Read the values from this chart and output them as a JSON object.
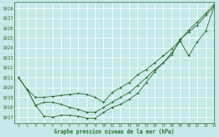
{
  "title": "Graphe pression niveau de la mer (hPa)",
  "bg_color": "#c5e8e8",
  "grid_color": "#ffffff",
  "line_color": "#2d6e2d",
  "xlim": [
    -0.5,
    23
  ],
  "ylim": [
    1016.4,
    1028.6
  ],
  "yticks": [
    1017,
    1018,
    1019,
    1020,
    1021,
    1022,
    1023,
    1024,
    1025,
    1026,
    1027,
    1028
  ],
  "xticks": [
    0,
    1,
    2,
    3,
    4,
    5,
    6,
    7,
    8,
    9,
    10,
    11,
    12,
    13,
    14,
    15,
    16,
    17,
    18,
    19,
    20,
    21,
    22,
    23
  ],
  "series": [
    {
      "x": [
        0,
        1,
        2,
        3,
        4,
        5,
        6,
        7,
        8,
        9,
        10,
        11,
        12,
        13,
        14,
        15,
        16,
        17,
        18,
        19,
        20,
        21,
        22,
        23
      ],
      "y": [
        1021.0,
        1019.8,
        1019.0,
        1019.0,
        1019.1,
        1019.2,
        1019.3,
        1019.4,
        1019.3,
        1019.0,
        1018.5,
        1019.5,
        1020.0,
        1020.5,
        1021.3,
        1021.8,
        1022.5,
        1023.2,
        1023.9,
        1024.8,
        1025.8,
        1026.6,
        1027.5,
        1028.4
      ]
    },
    {
      "x": [
        0,
        1,
        2,
        3,
        4,
        5,
        6,
        7,
        8,
        9,
        10,
        11,
        12,
        13,
        14,
        15,
        16,
        17,
        18,
        19,
        20,
        21,
        22,
        23
      ],
      "y": [
        1021.0,
        1019.8,
        1018.2,
        1018.5,
        1018.5,
        1018.3,
        1018.0,
        1017.8,
        1017.5,
        1017.5,
        1018.0,
        1018.5,
        1019.0,
        1019.5,
        1020.2,
        1021.0,
        1021.8,
        1022.5,
        1023.3,
        1024.9,
        1025.6,
        1026.3,
        1027.3,
        1028.2
      ]
    },
    {
      "x": [
        0,
        1,
        2,
        3,
        4,
        5,
        6,
        7,
        8,
        9,
        10,
        11,
        12,
        13,
        14,
        15,
        16,
        17,
        18,
        19,
        20,
        21,
        22,
        23
      ],
      "y": [
        1021.0,
        1019.8,
        1018.2,
        1017.1,
        1017.0,
        1017.2,
        1017.2,
        1017.1,
        1016.9,
        1016.9,
        1017.5,
        1018.0,
        1018.3,
        1018.8,
        1019.4,
        1020.5,
        1021.6,
        1022.5,
        1023.5,
        1024.7,
        1023.2,
        1024.6,
        1025.7,
        1028.2
      ]
    }
  ]
}
